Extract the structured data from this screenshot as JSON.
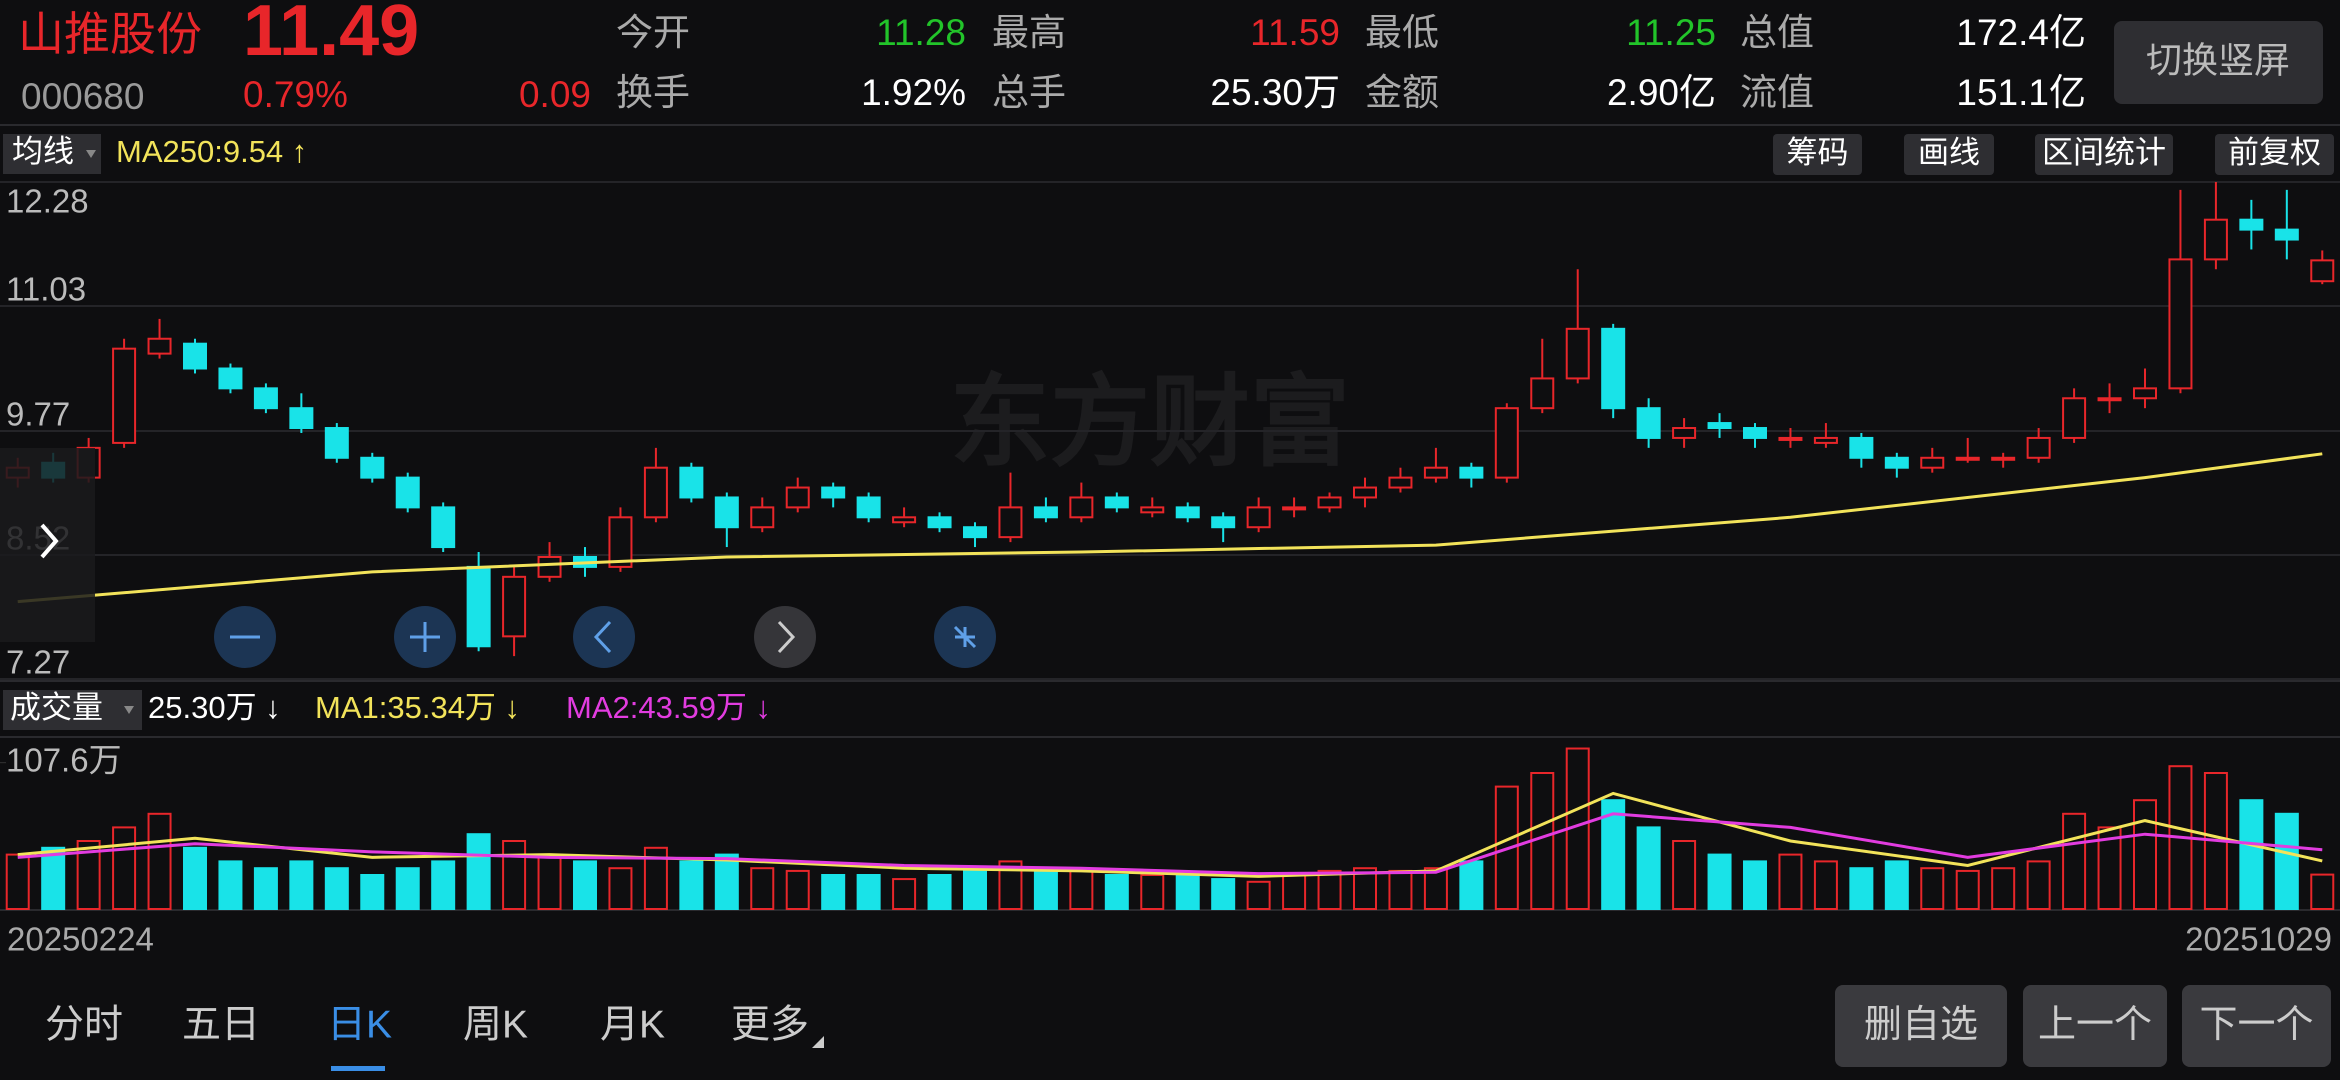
{
  "header": {
    "name": "山推股份",
    "price": "11.49",
    "code": "000680",
    "change_pct": "0.79%",
    "change": "0.09",
    "stats": [
      {
        "label": "今开",
        "value": "11.28",
        "color": "#22c42a"
      },
      {
        "label": "最高",
        "value": "11.59",
        "color": "#e8262a"
      },
      {
        "label": "最低",
        "value": "11.25",
        "color": "#22c42a"
      },
      {
        "label": "总值",
        "value": "172.4亿",
        "color": "#ffffff"
      },
      {
        "label": "换手",
        "value": "1.92%",
        "color": "#ffffff"
      },
      {
        "label": "总手",
        "value": "25.30万",
        "color": "#ffffff"
      },
      {
        "label": "金额",
        "value": "2.90亿",
        "color": "#ffffff"
      },
      {
        "label": "流值",
        "value": "151.1亿",
        "color": "#ffffff"
      }
    ],
    "switch_button": "切换竖屏"
  },
  "toolbar": {
    "indicator": "均线",
    "ma_label": "MA250:9.54 ↑",
    "buttons": [
      "筹码",
      "画线",
      "区间统计",
      "前复权"
    ]
  },
  "watermark": "东方财富",
  "volume_header": {
    "indicator": "成交量",
    "current": "25.30万 ↓",
    "ma1": "MA1:35.34万 ↓",
    "ma2": "MA2:43.59万 ↓"
  },
  "chart_data": [
    {
      "type": "candlestick",
      "colors": {
        "up": "#e8262a",
        "down": "#19e3e8"
      },
      "ylim": [
        7.27,
        12.28
      ],
      "yticks": [
        12.28,
        11.03,
        9.77,
        8.52,
        7.27
      ],
      "grid": true,
      "candles": [
        [
          9.3,
          9.5,
          9.2,
          9.4
        ],
        [
          9.45,
          9.55,
          9.25,
          9.3
        ],
        [
          9.3,
          9.7,
          9.25,
          9.6
        ],
        [
          9.65,
          10.7,
          9.6,
          10.6
        ],
        [
          10.55,
          10.9,
          10.5,
          10.7
        ],
        [
          10.65,
          10.7,
          10.35,
          10.4
        ],
        [
          10.4,
          10.45,
          10.15,
          10.2
        ],
        [
          10.2,
          10.25,
          9.95,
          10.0
        ],
        [
          10.0,
          10.15,
          9.75,
          9.8
        ],
        [
          9.8,
          9.85,
          9.45,
          9.5
        ],
        [
          9.5,
          9.55,
          9.25,
          9.3
        ],
        [
          9.3,
          9.35,
          8.95,
          9.0
        ],
        [
          9.0,
          9.05,
          8.55,
          8.6
        ],
        [
          8.4,
          8.55,
          7.55,
          7.6
        ],
        [
          7.7,
          8.4,
          7.5,
          8.3
        ],
        [
          8.3,
          8.65,
          8.25,
          8.5
        ],
        [
          8.5,
          8.6,
          8.3,
          8.4
        ],
        [
          8.4,
          9.0,
          8.35,
          8.9
        ],
        [
          8.9,
          9.6,
          8.85,
          9.4
        ],
        [
          9.4,
          9.45,
          9.05,
          9.1
        ],
        [
          9.1,
          9.15,
          8.6,
          8.8
        ],
        [
          8.8,
          9.1,
          8.75,
          9.0
        ],
        [
          9.0,
          9.3,
          8.95,
          9.2
        ],
        [
          9.2,
          9.25,
          9.0,
          9.1
        ],
        [
          9.1,
          9.15,
          8.85,
          8.9
        ],
        [
          8.85,
          9.0,
          8.8,
          8.9
        ],
        [
          8.9,
          8.95,
          8.75,
          8.8
        ],
        [
          8.8,
          8.85,
          8.6,
          8.7
        ],
        [
          8.7,
          9.35,
          8.65,
          9.0
        ],
        [
          9.0,
          9.1,
          8.85,
          8.9
        ],
        [
          8.9,
          9.25,
          8.85,
          9.1
        ],
        [
          9.1,
          9.15,
          8.95,
          9.0
        ],
        [
          8.95,
          9.1,
          8.9,
          9.0
        ],
        [
          9.0,
          9.05,
          8.85,
          8.9
        ],
        [
          8.9,
          8.95,
          8.65,
          8.8
        ],
        [
          8.8,
          9.1,
          8.75,
          9.0
        ],
        [
          9.0,
          9.1,
          8.9,
          9.0
        ],
        [
          9.0,
          9.15,
          8.95,
          9.1
        ],
        [
          9.1,
          9.3,
          9.0,
          9.2
        ],
        [
          9.2,
          9.4,
          9.15,
          9.3
        ],
        [
          9.3,
          9.6,
          9.25,
          9.4
        ],
        [
          9.4,
          9.45,
          9.2,
          9.3
        ],
        [
          9.3,
          10.05,
          9.25,
          10.0
        ],
        [
          10.0,
          10.7,
          9.95,
          10.3
        ],
        [
          10.3,
          11.4,
          10.25,
          10.8
        ],
        [
          10.8,
          10.85,
          9.9,
          10.0
        ],
        [
          10.0,
          10.1,
          9.6,
          9.7
        ],
        [
          9.7,
          9.9,
          9.6,
          9.8
        ],
        [
          9.85,
          9.95,
          9.7,
          9.8
        ],
        [
          9.8,
          9.85,
          9.6,
          9.7
        ],
        [
          9.7,
          9.8,
          9.6,
          9.7
        ],
        [
          9.65,
          9.85,
          9.6,
          9.7
        ],
        [
          9.7,
          9.75,
          9.4,
          9.5
        ],
        [
          9.5,
          9.55,
          9.3,
          9.4
        ],
        [
          9.4,
          9.6,
          9.35,
          9.5
        ],
        [
          9.5,
          9.7,
          9.45,
          9.5
        ],
        [
          9.5,
          9.55,
          9.4,
          9.5
        ],
        [
          9.5,
          9.8,
          9.45,
          9.7
        ],
        [
          9.7,
          10.2,
          9.65,
          10.1
        ],
        [
          10.1,
          10.25,
          9.95,
          10.1
        ],
        [
          10.1,
          10.4,
          10.0,
          10.2
        ],
        [
          10.2,
          12.2,
          10.15,
          11.5
        ],
        [
          11.5,
          12.28,
          11.4,
          11.9
        ],
        [
          11.9,
          12.1,
          11.6,
          11.8
        ],
        [
          11.8,
          12.2,
          11.5,
          11.7
        ],
        [
          11.28,
          11.59,
          11.25,
          11.49
        ]
      ],
      "ma250": {
        "color": "#f2e35a",
        "x": [
          0,
          10,
          20,
          30,
          40,
          50,
          60,
          65
        ],
        "values": [
          8.05,
          8.35,
          8.5,
          8.55,
          8.62,
          8.9,
          9.3,
          9.54
        ]
      }
    },
    {
      "type": "volume",
      "ylim": [
        0,
        125
      ],
      "yticks": [
        {
          "value": 107.6,
          "label": "107.6万"
        }
      ],
      "values": [
        40,
        45,
        50,
        60,
        70,
        45,
        35,
        30,
        35,
        30,
        25,
        30,
        35,
        55,
        50,
        40,
        35,
        30,
        45,
        35,
        40,
        30,
        28,
        25,
        25,
        22,
        25,
        30,
        35,
        30,
        28,
        25,
        25,
        25,
        22,
        20,
        25,
        28,
        30,
        28,
        30,
        35,
        90,
        100,
        118,
        80,
        60,
        50,
        40,
        35,
        40,
        35,
        30,
        35,
        30,
        28,
        30,
        35,
        70,
        60,
        80,
        105,
        100,
        80,
        70,
        25.3
      ],
      "ma1": {
        "color": "#f2e35a",
        "x": [
          0,
          5,
          10,
          15,
          20,
          25,
          30,
          35,
          40,
          45,
          50,
          55,
          60,
          65
        ],
        "values": [
          40,
          52,
          38,
          40,
          36,
          30,
          28,
          24,
          28,
          85,
          50,
          32,
          65,
          35.34
        ]
      },
      "ma2": {
        "color": "#e23ce0",
        "x": [
          0,
          5,
          10,
          15,
          20,
          25,
          30,
          35,
          40,
          45,
          50,
          55,
          60,
          65
        ],
        "values": [
          38,
          48,
          42,
          38,
          37,
          32,
          30,
          26,
          27,
          70,
          60,
          38,
          55,
          43.59
        ]
      }
    }
  ],
  "dates": [
    "20250224",
    "20251029"
  ],
  "tabs": [
    "分时",
    "五日",
    "日K",
    "周K",
    "月K",
    "更多"
  ],
  "active_tab": 2,
  "buttons": [
    "删自选",
    "上一个",
    "下一个"
  ]
}
